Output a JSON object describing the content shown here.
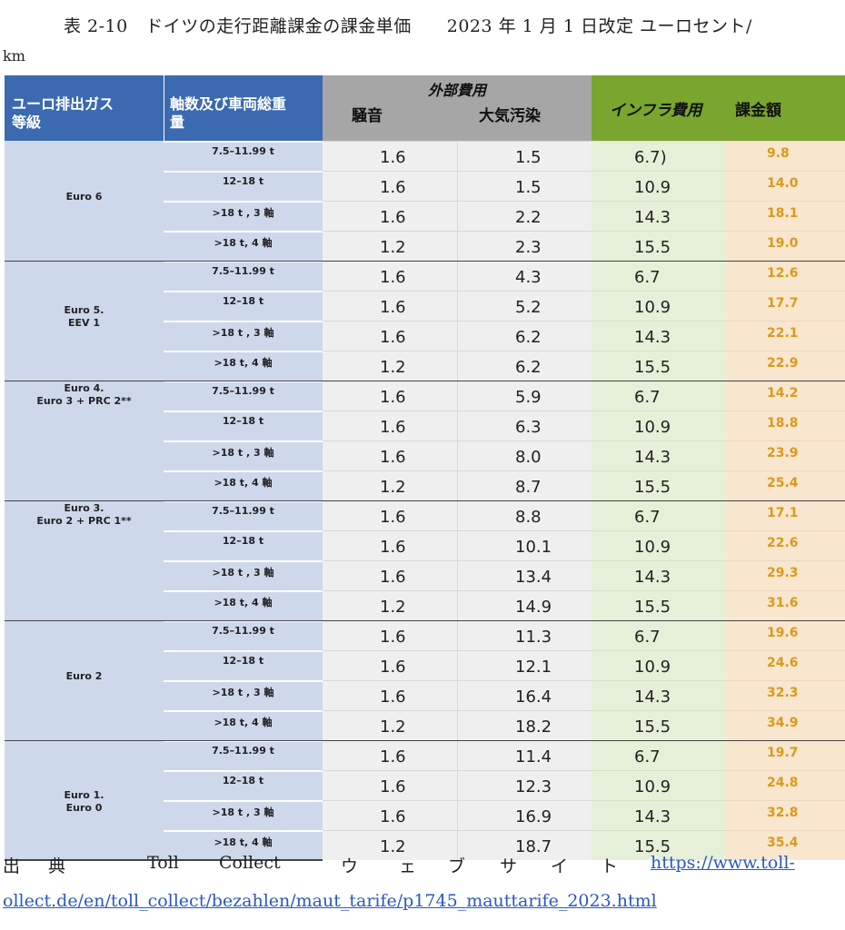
{
  "caption": {
    "line1": "表 2-10　ドイツの走行距離課金の課金単価　　2023 年 1 月 1 日改定 ユーロセント/",
    "line2": "km"
  },
  "header": {
    "euro_class_line1": "ユーロ排出ガス",
    "euro_class_line2": "等級",
    "axle_line1": "軸数及び車両総重",
    "axle_line2": "量",
    "external_cost": "外部費用",
    "noise": "騒音",
    "air_pollution": "大気汚染",
    "infra_cost": "インフラ費用",
    "total": "課金額"
  },
  "groups": [
    {
      "label_lines": [
        "Euro 6"
      ],
      "label_pos": "middle",
      "rows": [
        {
          "axle": "7.5–11.99 t",
          "noise": "1.6",
          "air": "1.5",
          "infra": "6.7)",
          "total": "9.8"
        },
        {
          "axle": "12–18 t",
          "noise": "1.6",
          "air": "1.5",
          "infra": "10.9",
          "total": "14.0"
        },
        {
          "axle": ">18 t , 3 軸",
          "noise": "1.6",
          "air": "2.2",
          "infra": "14.3",
          "total": "18.1"
        },
        {
          "axle": ">18 t, 4 軸",
          "noise": "1.2",
          "air": "2.3",
          "infra": "15.5",
          "total": "19.0"
        }
      ]
    },
    {
      "label_lines": [
        "Euro 5.",
        "EEV 1"
      ],
      "label_pos": "middle",
      "rows": [
        {
          "axle": "7.5–11.99 t",
          "noise": "1.6",
          "air": "4.3",
          "infra": "6.7",
          "total": "12.6"
        },
        {
          "axle": "12–18 t",
          "noise": "1.6",
          "air": "5.2",
          "infra": "10.9",
          "total": "17.7"
        },
        {
          "axle": ">18 t , 3 軸",
          "noise": "1.6",
          "air": "6.2",
          "infra": "14.3",
          "total": "22.1"
        },
        {
          "axle": ">18 t, 4 軸",
          "noise": "1.2",
          "air": "6.2",
          "infra": "15.5",
          "total": "22.9"
        }
      ]
    },
    {
      "label_lines": [
        "Euro 4.",
        "Euro 3 + PRC 2**"
      ],
      "label_pos": "top",
      "rows": [
        {
          "axle": "7.5–11.99 t",
          "noise": "1.6",
          "air": "5.9",
          "infra": "6.7",
          "total": "14.2"
        },
        {
          "axle": "12–18 t",
          "noise": "1.6",
          "air": "6.3",
          "infra": "10.9",
          "total": "18.8"
        },
        {
          "axle": ">18 t , 3 軸",
          "noise": "1.6",
          "air": "8.0",
          "infra": "14.3",
          "total": "23.9"
        },
        {
          "axle": ">18 t, 4 軸",
          "noise": "1.2",
          "air": "8.7",
          "infra": "15.5",
          "total": "25.4"
        }
      ]
    },
    {
      "label_lines": [
        "Euro 3.",
        "Euro 2 + PRC 1**"
      ],
      "label_pos": "top",
      "rows": [
        {
          "axle": "7.5–11.99 t",
          "noise": "1.6",
          "air": "8.8",
          "infra": "6.7",
          "total": "17.1"
        },
        {
          "axle": "12–18 t",
          "noise": "1.6",
          "air": "10.1",
          "infra": "10.9",
          "total": "22.6"
        },
        {
          "axle": ">18 t , 3 軸",
          "noise": "1.6",
          "air": "13.4",
          "infra": "14.3",
          "total": "29.3"
        },
        {
          "axle": ">18 t, 4 軸",
          "noise": "1.2",
          "air": "14.9",
          "infra": "15.5",
          "total": "31.6"
        }
      ]
    },
    {
      "label_lines": [
        "Euro 2"
      ],
      "label_pos": "middle",
      "rows": [
        {
          "axle": "7.5–11.99 t",
          "noise": "1.6",
          "air": "11.3",
          "infra": "6.7",
          "total": "19.6"
        },
        {
          "axle": "12–18 t",
          "noise": "1.6",
          "air": "12.1",
          "infra": "10.9",
          "total": "24.6"
        },
        {
          "axle": ">18 t , 3 軸",
          "noise": "1.6",
          "air": "16.4",
          "infra": "14.3",
          "total": "32.3"
        },
        {
          "axle": ">18 t, 4 軸",
          "noise": "1.2",
          "air": "18.2",
          "infra": "15.5",
          "total": "34.9"
        }
      ]
    },
    {
      "label_lines": [
        "Euro 1.",
        "Euro 0"
      ],
      "label_pos": "lower",
      "rows": [
        {
          "axle": "7.5–11.99 t",
          "noise": "1.6",
          "air": "11.4",
          "infra": "6.7",
          "total": "19.7"
        },
        {
          "axle": "12–18 t",
          "noise": "1.6",
          "air": "12.3",
          "infra": "10.9",
          "total": "24.8"
        },
        {
          "axle": ">18 t , 3 軸",
          "noise": "1.6",
          "air": "16.9",
          "infra": "14.3",
          "total": "32.8"
        },
        {
          "axle": ">18 t, 4 軸",
          "noise": "1.2",
          "air": "18.7",
          "infra": "15.5",
          "total": "35.4"
        }
      ]
    }
  ],
  "source": {
    "w1": "出",
    "w2": "典",
    "w3": "Toll",
    "w4": "Collect",
    "w5": "ウ",
    "w6": "ェ",
    "w7": "ブ",
    "w8": "サ",
    "w9": "イ",
    "w10": "ト",
    "link_part1": "https://www.toll-",
    "link_part2": "ollect.de/en/toll_collect/bezahlen/maut_tarife/p1745_mauttarife_2023.html"
  }
}
